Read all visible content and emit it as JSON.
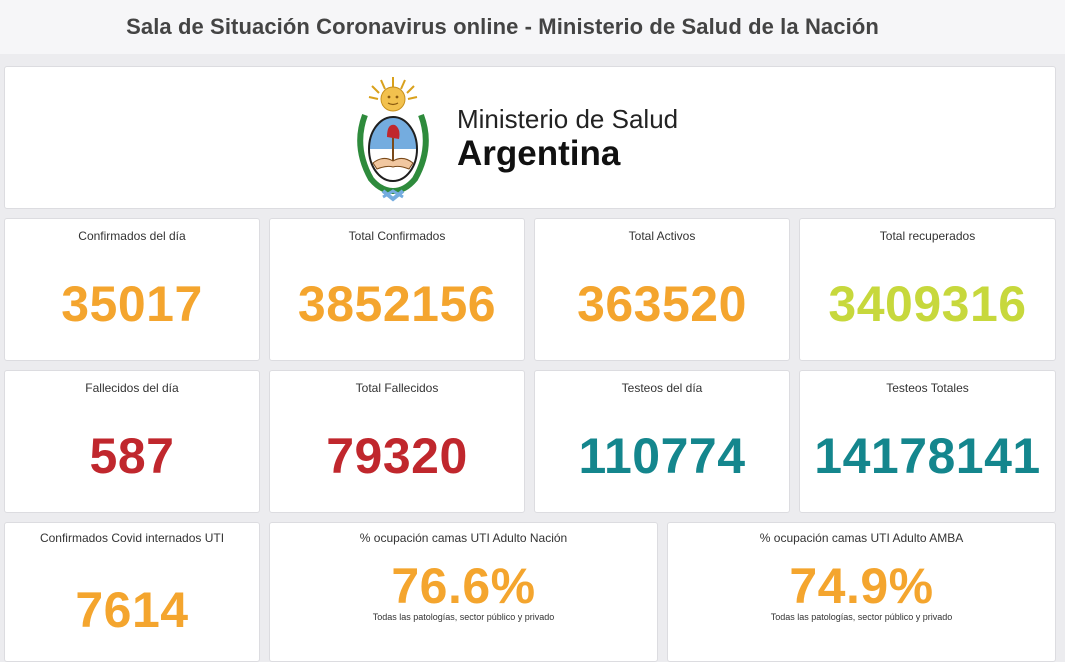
{
  "header": {
    "title": "Sala de Situación Coronavirus online - Ministerio de Salud de la Nación"
  },
  "logo": {
    "line1": "Ministerio de Salud",
    "line2": "Argentina"
  },
  "colors": {
    "orange": "#f4a52e",
    "red": "#c0272d",
    "teal": "#14868d",
    "lime": "#c7d83c"
  },
  "row1": [
    {
      "label": "Confirmados del día",
      "value": "35017"
    },
    {
      "label": "Total Confirmados",
      "value": "3852156"
    },
    {
      "label": "Total Activos",
      "value": "363520"
    },
    {
      "label": "Total recuperados",
      "value": "3409316"
    }
  ],
  "row2": [
    {
      "label": "Fallecidos del día",
      "value": "587"
    },
    {
      "label": "Total Fallecidos",
      "value": "79320"
    },
    {
      "label": "Testeos del día",
      "value": "110774"
    },
    {
      "label": "Testeos Totales",
      "value": "14178141"
    }
  ],
  "row3": [
    {
      "label": "Confirmados Covid internados UTI",
      "value": "7614"
    },
    {
      "label": "% ocupación camas UTI Adulto Nación",
      "value": "76.6%",
      "note": "Todas las patologías, sector público y privado"
    },
    {
      "label": "% ocupación camas UTI Adulto AMBA",
      "value": "74.9%",
      "note": "Todas las patologías, sector público y privado"
    }
  ]
}
